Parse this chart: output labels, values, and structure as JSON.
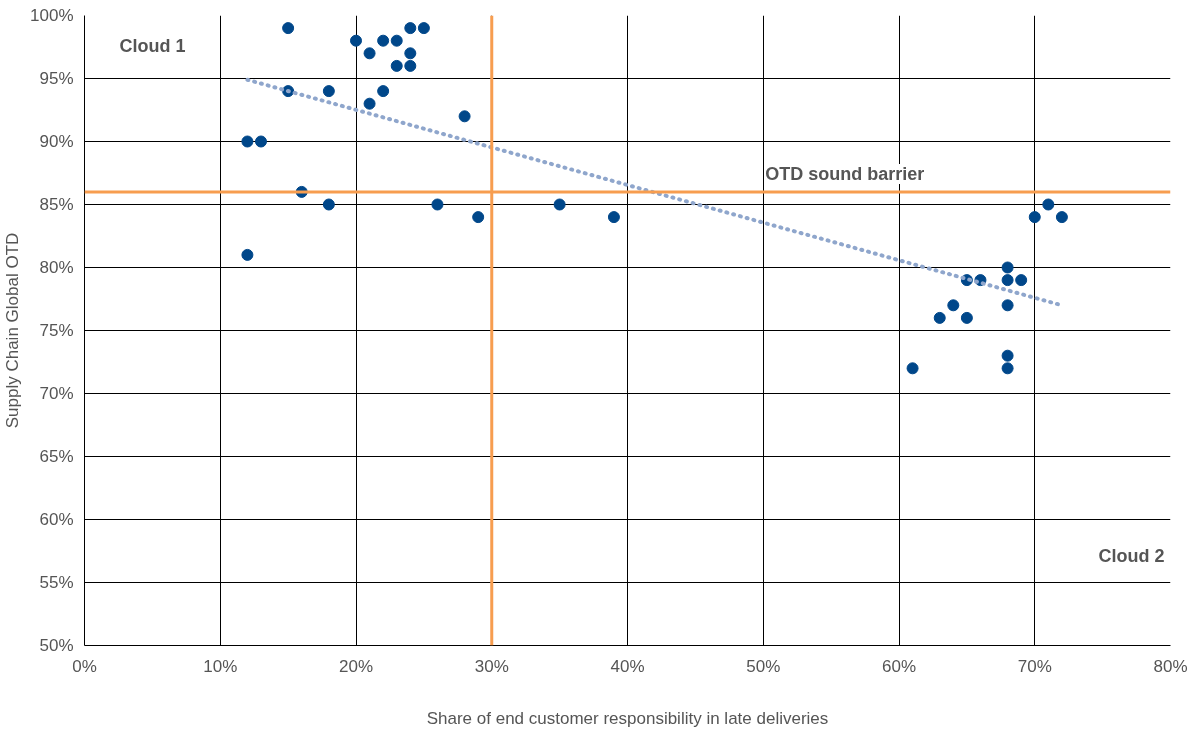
{
  "chart_data": {
    "type": "scatter",
    "xlabel": "Share of end customer responsibility in late deliveries",
    "ylabel": "Supply Chain Global OTD",
    "xlim": [
      0,
      80
    ],
    "ylim": [
      50,
      100
    ],
    "xticks": [
      {
        "value": 0,
        "label": "0%"
      },
      {
        "value": 10,
        "label": "10%"
      },
      {
        "value": 20,
        "label": "20%"
      },
      {
        "value": 30,
        "label": "30%"
      },
      {
        "value": 40,
        "label": "40%"
      },
      {
        "value": 50,
        "label": "50%"
      },
      {
        "value": 60,
        "label": "60%"
      },
      {
        "value": 70,
        "label": "70%"
      },
      {
        "value": 80,
        "label": "80%"
      }
    ],
    "yticks": [
      {
        "value": 50,
        "label": "50%"
      },
      {
        "value": 55,
        "label": "55%"
      },
      {
        "value": 60,
        "label": "60%"
      },
      {
        "value": 65,
        "label": "65%"
      },
      {
        "value": 70,
        "label": "70%"
      },
      {
        "value": 75,
        "label": "75%"
      },
      {
        "value": 80,
        "label": "80%"
      },
      {
        "value": 85,
        "label": "85%"
      },
      {
        "value": 90,
        "label": "90%"
      },
      {
        "value": 95,
        "label": "95%"
      },
      {
        "value": 100,
        "label": "100%"
      }
    ],
    "grid": true,
    "marker": "circle",
    "series": [
      {
        "color": "#00478a",
        "x": [
          15,
          24,
          25,
          20,
          22,
          23,
          21,
          24,
          23,
          24,
          15,
          18,
          22,
          21,
          28,
          12,
          13,
          16,
          18,
          26,
          29,
          35,
          39,
          12,
          70,
          71,
          72,
          65,
          66,
          68,
          68,
          68,
          68,
          68,
          69,
          64,
          63,
          65,
          61
        ],
        "values": [
          99,
          99,
          99,
          98,
          98,
          98,
          97,
          97,
          96,
          96,
          94,
          94,
          94,
          93,
          92,
          90,
          90,
          86,
          85,
          85,
          84,
          85,
          84,
          81,
          84,
          85,
          84,
          79,
          79,
          80,
          79,
          77,
          73,
          72,
          79,
          77,
          76,
          76,
          72
        ]
      },
      {
        "type": "line",
        "color": "#8fa6cc",
        "line_style": "dotted",
        "marker": "none",
        "x": [
          12,
          72
        ],
        "values": [
          94.9,
          77
        ]
      }
    ],
    "ref_lines": [
      {
        "axis": "x",
        "value": 30,
        "label": null,
        "color": "#f79d4f"
      },
      {
        "axis": "y",
        "value": 86,
        "label": "OTD sound barrier",
        "color": "#f79d4f"
      }
    ],
    "annotations": [
      "Cloud 1",
      "Cloud 2"
    ]
  }
}
